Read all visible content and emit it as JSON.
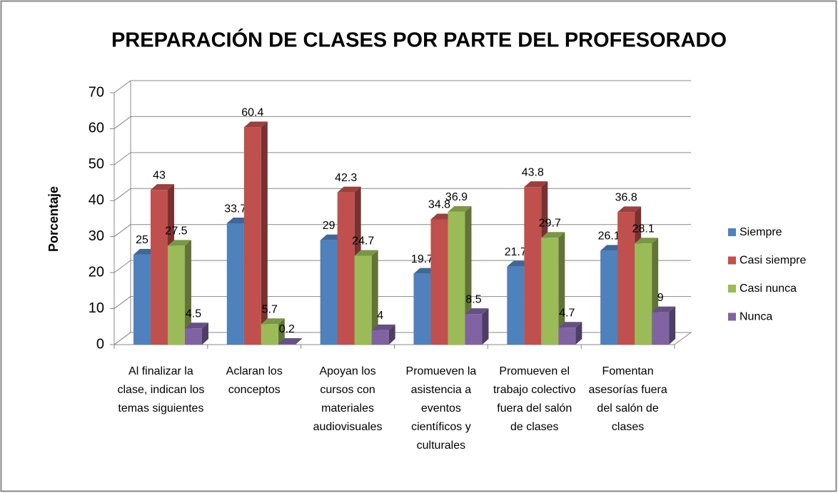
{
  "chart_data": {
    "type": "bar3d",
    "title": "PREPARACIÓN DE CLASES POR PARTE DEL PROFESORADO",
    "ylabel": "Porcentaje",
    "categories": [
      "Al finalizar la clase, indican los temas siguientes",
      "Aclaran los conceptos",
      "Apoyan los cursos con materiales audiovisuales",
      "Promueven la asistencia a eventos científicos y culturales",
      "Promueven el trabajo colectivo fuera del salón de clases",
      "Fomentan asesorías fuera del salón de clases"
    ],
    "series": [
      {
        "name": "Siempre",
        "color": "#4f81bd",
        "values": [
          25,
          33.7,
          29,
          19.7,
          21.7,
          26.1
        ]
      },
      {
        "name": "Casi siempre",
        "color": "#c0504d",
        "values": [
          43,
          60.4,
          42.3,
          34.8,
          43.8,
          36.8
        ]
      },
      {
        "name": "Casi nunca",
        "color": "#9bbb59",
        "values": [
          27.5,
          5.7,
          24.7,
          36.9,
          29.7,
          28.1
        ]
      },
      {
        "name": "Nunca",
        "color": "#8064a2",
        "values": [
          4.5,
          0.2,
          4,
          8.5,
          4.7,
          9
        ]
      }
    ],
    "ylim": [
      0,
      70
    ],
    "yticks": [
      0,
      10,
      20,
      30,
      40,
      50,
      60,
      70
    ],
    "grid": true,
    "legend": "right"
  }
}
